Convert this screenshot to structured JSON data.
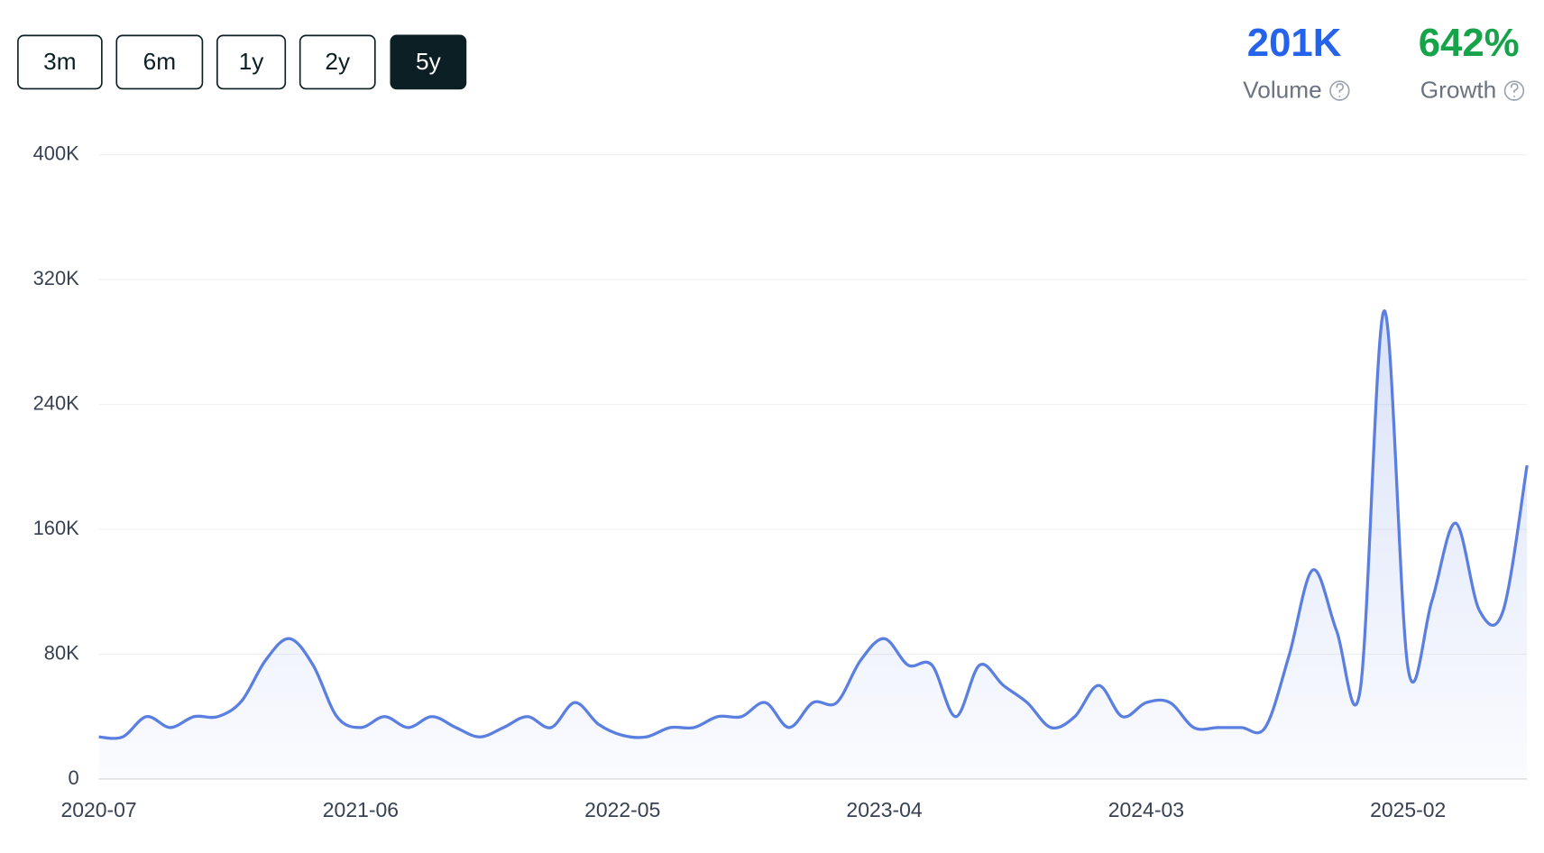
{
  "controls": {
    "ranges": [
      "3m",
      "6m",
      "1y",
      "2y",
      "5y"
    ],
    "active": 4
  },
  "stats": [
    {
      "value": "201K",
      "label": "Volume",
      "color": "#2563eb"
    },
    {
      "value": "642%",
      "label": "Growth",
      "color": "#16a34a"
    }
  ],
  "chart_data": {
    "type": "line",
    "color": "#5b7fe0",
    "grid": true,
    "categories": [
      "2020-07",
      null,
      null,
      null,
      null,
      null,
      null,
      null,
      null,
      null,
      null,
      "2021-06",
      null,
      null,
      null,
      null,
      null,
      null,
      null,
      null,
      null,
      null,
      "2022-05",
      null,
      null,
      null,
      null,
      null,
      null,
      null,
      null,
      null,
      null,
      "2023-04",
      null,
      null,
      null,
      null,
      null,
      null,
      null,
      null,
      null,
      null,
      "2024-03",
      null,
      null,
      null,
      null,
      null,
      null,
      null,
      null,
      null,
      null,
      "2025-02",
      null,
      null,
      null,
      null,
      null
    ],
    "values": [
      27000,
      27000,
      40000,
      33000,
      40000,
      40000,
      50000,
      76000,
      90000,
      73000,
      40000,
      33000,
      40000,
      33000,
      40000,
      33000,
      27000,
      33000,
      40000,
      33000,
      49000,
      35000,
      28000,
      27000,
      33000,
      33000,
      40000,
      40000,
      49000,
      33000,
      49000,
      49000,
      76000,
      90000,
      73000,
      73000,
      40000,
      73000,
      60000,
      49000,
      33000,
      40000,
      60000,
      40000,
      49000,
      49000,
      33000,
      33000,
      33000,
      33000,
      79000,
      134000,
      95000,
      58000,
      300000,
      71000,
      114000,
      164000,
      108000,
      108000,
      201000
    ],
    "ylim": [
      0,
      400000
    ],
    "yticks": [
      0,
      {
        "value": 80000,
        "label": "80K"
      },
      {
        "value": 160000,
        "label": "160K"
      },
      {
        "value": 240000,
        "label": "240K"
      },
      {
        "value": 320000,
        "label": "320K"
      },
      {
        "value": 400000,
        "label": "400K"
      }
    ]
  }
}
